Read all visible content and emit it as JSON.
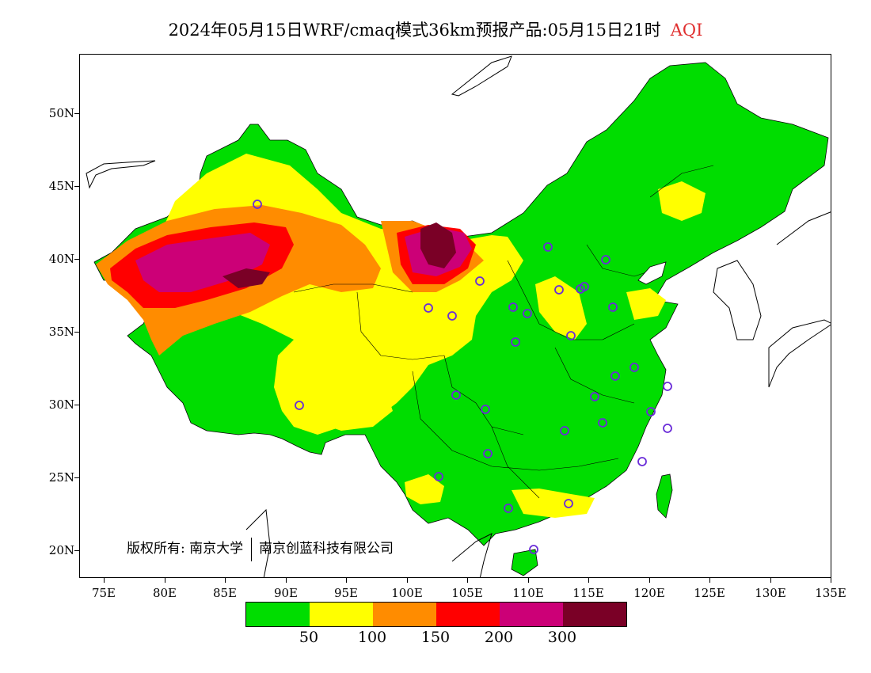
{
  "title": {
    "main": "2024年05月15日WRF/cmaq模式36km预报产品:05月15日21时",
    "variable": "AQI",
    "variable_color": "#e03030"
  },
  "map": {
    "lat_labels": [
      "50N",
      "45N",
      "40N",
      "35N",
      "30N",
      "25N",
      "20N"
    ],
    "lon_labels": [
      "75E",
      "80E",
      "85E",
      "90E",
      "95E",
      "100E",
      "105E",
      "110E",
      "115E",
      "120E",
      "125E",
      "130E",
      "135E"
    ],
    "copyright_prefix": "版权所有:",
    "copyright_org1": "南京大学",
    "copyright_org2": "南京创蓝科技有限公司",
    "station_marker_color": "#6a2cd8"
  },
  "legend": {
    "colors": [
      "#00dd00",
      "#ffff00",
      "#ff8c00",
      "#ff0000",
      "#cc0077",
      "#7a0026"
    ],
    "labels": [
      "50",
      "100",
      "150",
      "200",
      "300"
    ],
    "categories_aqi": [
      "0-50",
      "50-100",
      "100-150",
      "150-200",
      "200-300",
      ">300"
    ]
  }
}
